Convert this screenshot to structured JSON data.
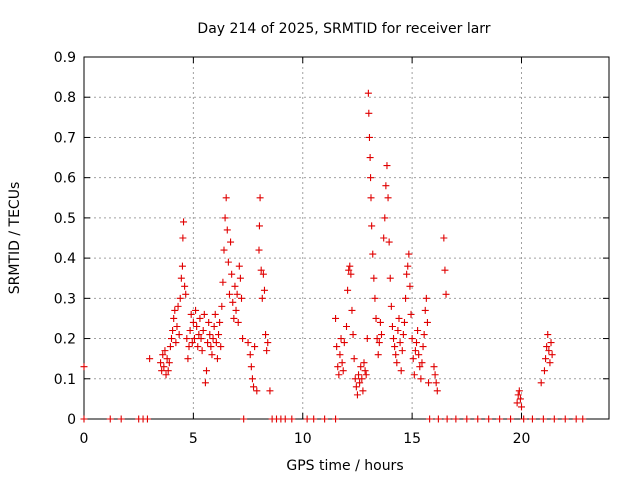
{
  "chart_data": {
    "type": "scatter",
    "title": "Day 214 of 2025, SRMTID for receiver larr",
    "xlabel": "GPS time / hours",
    "ylabel": "SRMTID / TECUs",
    "xlim": [
      0,
      24
    ],
    "ylim": [
      0,
      0.9
    ],
    "x_ticks": [
      0,
      5,
      10,
      15,
      20
    ],
    "y_ticks": [
      0,
      0.1,
      0.2,
      0.3,
      0.4,
      0.5,
      0.6,
      0.7,
      0.8,
      0.9
    ],
    "x_tick_labels": [
      "0",
      "5",
      "10",
      "15",
      "20"
    ],
    "y_tick_labels": [
      "0",
      "0.1",
      "0.2",
      "0.3",
      "0.4",
      "0.5",
      "0.6",
      "0.7",
      "0.8",
      "0.9"
    ],
    "grid": true,
    "marker": "+",
    "color": "#e00000",
    "series": [
      {
        "name": "SRMTID",
        "points": [
          [
            0.0,
            0.13
          ],
          [
            0.0,
            0.0
          ],
          [
            1.2,
            0.0
          ],
          [
            1.7,
            0.0
          ],
          [
            2.5,
            0.0
          ],
          [
            2.7,
            0.0
          ],
          [
            2.9,
            0.0
          ],
          [
            3.0,
            0.15
          ],
          [
            3.5,
            0.14
          ],
          [
            3.55,
            0.12
          ],
          [
            3.6,
            0.16
          ],
          [
            3.65,
            0.13
          ],
          [
            3.7,
            0.17
          ],
          [
            3.75,
            0.11
          ],
          [
            3.8,
            0.15
          ],
          [
            3.85,
            0.12
          ],
          [
            3.9,
            0.14
          ],
          [
            3.95,
            0.18
          ],
          [
            4.0,
            0.2
          ],
          [
            4.05,
            0.22
          ],
          [
            4.1,
            0.25
          ],
          [
            4.15,
            0.27
          ],
          [
            4.2,
            0.19
          ],
          [
            4.25,
            0.23
          ],
          [
            4.3,
            0.28
          ],
          [
            4.35,
            0.21
          ],
          [
            4.4,
            0.3
          ],
          [
            4.45,
            0.35
          ],
          [
            4.5,
            0.38
          ],
          [
            4.52,
            0.45
          ],
          [
            4.55,
            0.49
          ],
          [
            4.6,
            0.33
          ],
          [
            4.65,
            0.31
          ],
          [
            4.7,
            0.2
          ],
          [
            4.75,
            0.15
          ],
          [
            4.8,
            0.18
          ],
          [
            4.85,
            0.22
          ],
          [
            4.9,
            0.26
          ],
          [
            4.95,
            0.19
          ],
          [
            5.0,
            0.24
          ],
          [
            5.05,
            0.2
          ],
          [
            5.1,
            0.27
          ],
          [
            5.15,
            0.23
          ],
          [
            5.2,
            0.18
          ],
          [
            5.25,
            0.21
          ],
          [
            5.3,
            0.25
          ],
          [
            5.35,
            0.2
          ],
          [
            5.4,
            0.17
          ],
          [
            5.45,
            0.22
          ],
          [
            5.5,
            0.26
          ],
          [
            5.55,
            0.09
          ],
          [
            5.6,
            0.12
          ],
          [
            5.65,
            0.19
          ],
          [
            5.7,
            0.24
          ],
          [
            5.75,
            0.21
          ],
          [
            5.8,
            0.18
          ],
          [
            5.85,
            0.16
          ],
          [
            5.9,
            0.2
          ],
          [
            5.95,
            0.23
          ],
          [
            6.0,
            0.26
          ],
          [
            6.05,
            0.19
          ],
          [
            6.1,
            0.15
          ],
          [
            6.15,
            0.21
          ],
          [
            6.2,
            0.24
          ],
          [
            6.25,
            0.18
          ],
          [
            6.3,
            0.28
          ],
          [
            6.35,
            0.34
          ],
          [
            6.4,
            0.42
          ],
          [
            6.45,
            0.5
          ],
          [
            6.5,
            0.55
          ],
          [
            6.55,
            0.47
          ],
          [
            6.6,
            0.39
          ],
          [
            6.65,
            0.31
          ],
          [
            6.7,
            0.44
          ],
          [
            6.75,
            0.36
          ],
          [
            6.8,
            0.29
          ],
          [
            6.85,
            0.25
          ],
          [
            6.9,
            0.33
          ],
          [
            6.95,
            0.27
          ],
          [
            7.0,
            0.31
          ],
          [
            7.05,
            0.24
          ],
          [
            7.1,
            0.38
          ],
          [
            7.15,
            0.35
          ],
          [
            7.2,
            0.3
          ],
          [
            7.25,
            0.2
          ],
          [
            7.3,
            0.0
          ],
          [
            7.5,
            0.19
          ],
          [
            7.6,
            0.16
          ],
          [
            7.65,
            0.13
          ],
          [
            7.7,
            0.1
          ],
          [
            7.75,
            0.08
          ],
          [
            7.8,
            0.18
          ],
          [
            7.9,
            0.07
          ],
          [
            8.0,
            0.42
          ],
          [
            8.02,
            0.48
          ],
          [
            8.05,
            0.55
          ],
          [
            8.1,
            0.37
          ],
          [
            8.15,
            0.3
          ],
          [
            8.2,
            0.36
          ],
          [
            8.25,
            0.32
          ],
          [
            8.3,
            0.21
          ],
          [
            8.35,
            0.17
          ],
          [
            8.4,
            0.19
          ],
          [
            8.5,
            0.07
          ],
          [
            8.6,
            0.0
          ],
          [
            8.8,
            0.0
          ],
          [
            9.0,
            0.0
          ],
          [
            9.2,
            0.0
          ],
          [
            9.5,
            0.0
          ],
          [
            10.2,
            0.0
          ],
          [
            10.5,
            0.0
          ],
          [
            11.0,
            0.0
          ],
          [
            11.5,
            0.0
          ],
          [
            11.5,
            0.25
          ],
          [
            11.55,
            0.18
          ],
          [
            11.6,
            0.13
          ],
          [
            11.65,
            0.11
          ],
          [
            11.7,
            0.16
          ],
          [
            11.75,
            0.2
          ],
          [
            11.8,
            0.14
          ],
          [
            11.85,
            0.12
          ],
          [
            11.9,
            0.19
          ],
          [
            12.0,
            0.23
          ],
          [
            12.05,
            0.32
          ],
          [
            12.1,
            0.37
          ],
          [
            12.15,
            0.38
          ],
          [
            12.2,
            0.36
          ],
          [
            12.25,
            0.27
          ],
          [
            12.3,
            0.21
          ],
          [
            12.35,
            0.15
          ],
          [
            12.4,
            0.1
          ],
          [
            12.45,
            0.08
          ],
          [
            12.5,
            0.06
          ],
          [
            12.55,
            0.11
          ],
          [
            12.6,
            0.09
          ],
          [
            12.65,
            0.13
          ],
          [
            12.7,
            0.1
          ],
          [
            12.75,
            0.07
          ],
          [
            12.8,
            0.14
          ],
          [
            12.85,
            0.12
          ],
          [
            12.9,
            0.11
          ],
          [
            12.95,
            0.2
          ],
          [
            13.0,
            0.81
          ],
          [
            13.02,
            0.76
          ],
          [
            13.05,
            0.7
          ],
          [
            13.08,
            0.65
          ],
          [
            13.1,
            0.6
          ],
          [
            13.12,
            0.55
          ],
          [
            13.15,
            0.48
          ],
          [
            13.2,
            0.41
          ],
          [
            13.25,
            0.35
          ],
          [
            13.3,
            0.3
          ],
          [
            13.35,
            0.25
          ],
          [
            13.4,
            0.2
          ],
          [
            13.45,
            0.16
          ],
          [
            13.5,
            0.19
          ],
          [
            13.55,
            0.24
          ],
          [
            13.6,
            0.21
          ],
          [
            13.7,
            0.45
          ],
          [
            13.75,
            0.5
          ],
          [
            13.8,
            0.58
          ],
          [
            13.85,
            0.63
          ],
          [
            13.9,
            0.55
          ],
          [
            13.95,
            0.44
          ],
          [
            14.0,
            0.35
          ],
          [
            14.05,
            0.28
          ],
          [
            14.1,
            0.23
          ],
          [
            14.15,
            0.2
          ],
          [
            14.2,
            0.18
          ],
          [
            14.25,
            0.16
          ],
          [
            14.3,
            0.14
          ],
          [
            14.35,
            0.22
          ],
          [
            14.4,
            0.25
          ],
          [
            14.45,
            0.19
          ],
          [
            14.5,
            0.12
          ],
          [
            14.55,
            0.17
          ],
          [
            14.6,
            0.21
          ],
          [
            14.65,
            0.24
          ],
          [
            14.7,
            0.3
          ],
          [
            14.75,
            0.36
          ],
          [
            14.8,
            0.38
          ],
          [
            14.85,
            0.41
          ],
          [
            14.9,
            0.33
          ],
          [
            14.95,
            0.26
          ],
          [
            15.0,
            0.2
          ],
          [
            15.05,
            0.15
          ],
          [
            15.1,
            0.11
          ],
          [
            15.15,
            0.17
          ],
          [
            15.2,
            0.19
          ],
          [
            15.25,
            0.22
          ],
          [
            15.3,
            0.16
          ],
          [
            15.35,
            0.13
          ],
          [
            15.4,
            0.1
          ],
          [
            15.45,
            0.14
          ],
          [
            15.5,
            0.18
          ],
          [
            15.55,
            0.21
          ],
          [
            15.6,
            0.27
          ],
          [
            15.65,
            0.3
          ],
          [
            15.7,
            0.24
          ],
          [
            15.75,
            0.09
          ],
          [
            15.8,
            0.0
          ],
          [
            16.0,
            0.13
          ],
          [
            16.05,
            0.11
          ],
          [
            16.1,
            0.09
          ],
          [
            16.15,
            0.07
          ],
          [
            16.2,
            0.0
          ],
          [
            16.45,
            0.45
          ],
          [
            16.5,
            0.37
          ],
          [
            16.55,
            0.31
          ],
          [
            16.6,
            0.0
          ],
          [
            17.0,
            0.0
          ],
          [
            17.5,
            0.0
          ],
          [
            18.0,
            0.0
          ],
          [
            18.5,
            0.0
          ],
          [
            19.0,
            0.0
          ],
          [
            19.5,
            0.0
          ],
          [
            19.8,
            0.04
          ],
          [
            19.85,
            0.06
          ],
          [
            19.9,
            0.07
          ],
          [
            19.95,
            0.05
          ],
          [
            20.0,
            0.03
          ],
          [
            20.1,
            0.0
          ],
          [
            20.5,
            0.0
          ],
          [
            20.9,
            0.09
          ],
          [
            21.0,
            0.0
          ],
          [
            21.05,
            0.12
          ],
          [
            21.1,
            0.15
          ],
          [
            21.15,
            0.18
          ],
          [
            21.2,
            0.21
          ],
          [
            21.25,
            0.17
          ],
          [
            21.3,
            0.14
          ],
          [
            21.35,
            0.19
          ],
          [
            21.4,
            0.16
          ],
          [
            21.5,
            0.0
          ],
          [
            22.0,
            0.0
          ],
          [
            22.5,
            0.0
          ],
          [
            22.8,
            0.0
          ]
        ]
      }
    ]
  }
}
